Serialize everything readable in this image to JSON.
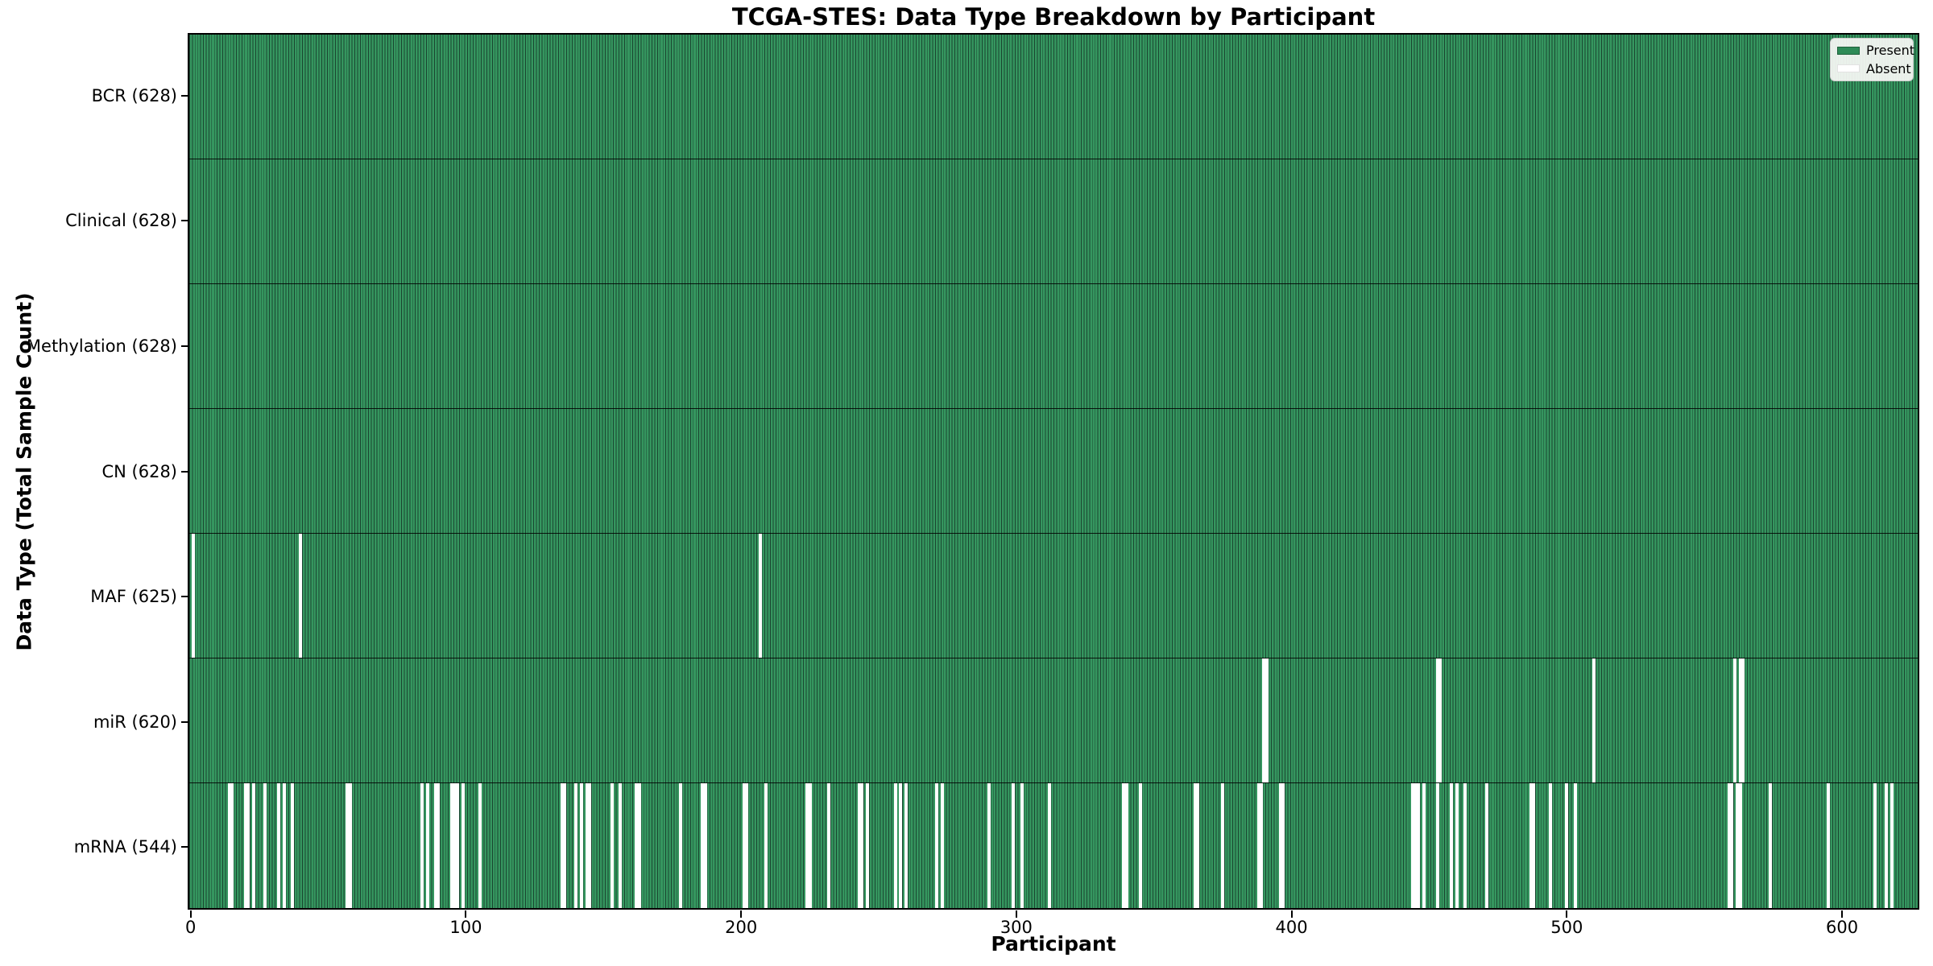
{
  "chart_data": {
    "type": "heatmap",
    "title": "TCGA-STES: Data Type Breakdown by Participant",
    "xlabel": "Participant",
    "ylabel": "Data Type (Total Sample Count)",
    "n_participants": 628,
    "x_axis_range": [
      0,
      628
    ],
    "x_ticks": [
      0,
      100,
      200,
      300,
      400,
      500,
      600
    ],
    "legend_position": "upper right",
    "grid": false,
    "legend": [
      {
        "label": "Present",
        "color": "#2e8b57"
      },
      {
        "label": "Absent",
        "color": "#ffffff"
      }
    ],
    "series": [
      {
        "label": "BCR (628)",
        "data_type": "BCR",
        "present_count": 628,
        "absent_participants": []
      },
      {
        "label": "Clinical (628)",
        "data_type": "Clinical",
        "present_count": 628,
        "absent_participants": []
      },
      {
        "label": "Methylation (628)",
        "data_type": "Methylation",
        "present_count": 628,
        "absent_participants": []
      },
      {
        "label": "CN (628)",
        "data_type": "CN",
        "present_count": 628,
        "absent_participants": []
      },
      {
        "label": "MAF (625)",
        "data_type": "MAF",
        "present_count": 625,
        "absent_participants": [
          1,
          40,
          207
        ]
      },
      {
        "label": "miR (620)",
        "data_type": "miR",
        "present_count": 620,
        "absent_participants": [
          390,
          391,
          453,
          454,
          510,
          561,
          563,
          564
        ]
      },
      {
        "label": "mRNA (544)",
        "data_type": "mRNA",
        "present_count": 544,
        "absent_participants": [
          14,
          15,
          20,
          21,
          23,
          27,
          32,
          34,
          37,
          57,
          58,
          84,
          86,
          89,
          90,
          95,
          96,
          97,
          99,
          105,
          135,
          136,
          140,
          142,
          144,
          145,
          153,
          156,
          162,
          163,
          178,
          186,
          187,
          201,
          202,
          209,
          224,
          225,
          232,
          243,
          244,
          246,
          256,
          258,
          260,
          271,
          273,
          290,
          299,
          302,
          312,
          339,
          340,
          345,
          365,
          366,
          375,
          388,
          389,
          396,
          397,
          444,
          445,
          446,
          448,
          453,
          458,
          460,
          463,
          471,
          487,
          488,
          494,
          500,
          503,
          559,
          560,
          562,
          563,
          574,
          595,
          612,
          616,
          618
        ]
      }
    ]
  },
  "colors": {
    "present": "#2e8b57",
    "present_fill": "#35965f",
    "bar_edge": "#1a4530",
    "absent": "#ffffff",
    "axis": "#000000",
    "legend_bg": "#fafaf7",
    "legend_border": "#cccccc"
  }
}
